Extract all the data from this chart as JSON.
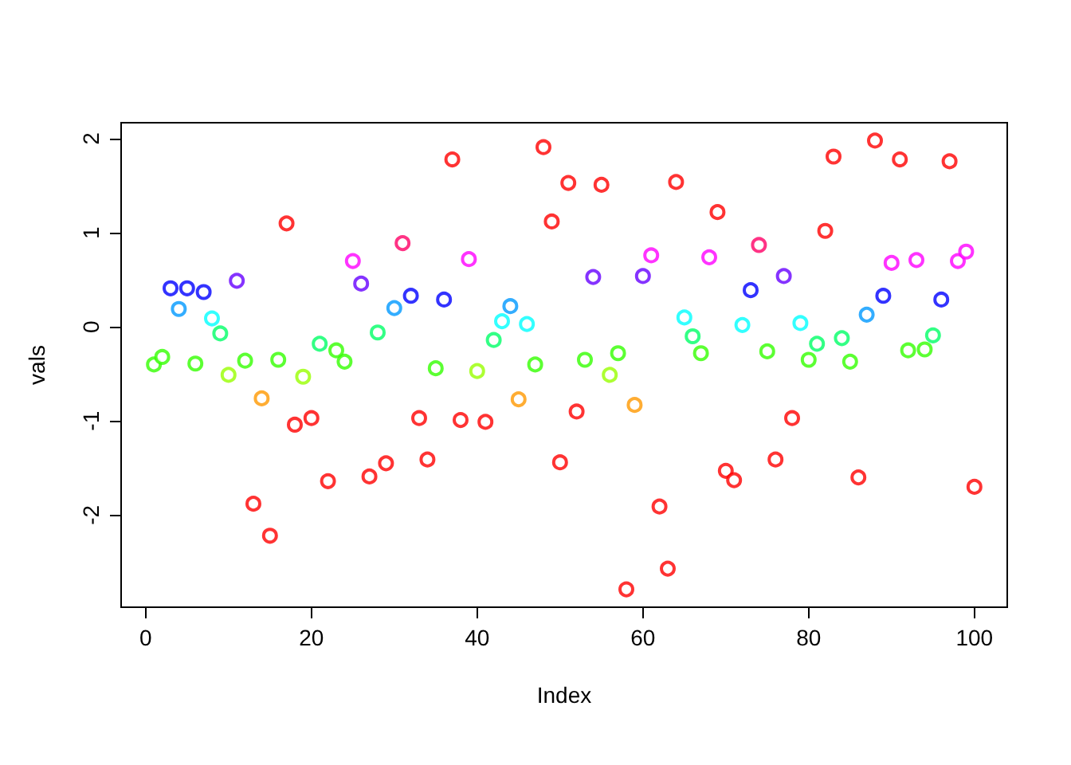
{
  "chart_data": {
    "type": "scatter",
    "xlabel": "Index",
    "ylabel": "vals",
    "marker": "circle",
    "grid": false,
    "xlim": [
      -2.96,
      103.96
    ],
    "ylim": [
      -2.98,
      2.17
    ],
    "xticks": [
      0,
      20,
      40,
      60,
      80,
      100
    ],
    "yticks": [
      -2,
      -1,
      0,
      1,
      2
    ],
    "x": [
      1,
      2,
      3,
      4,
      5,
      6,
      7,
      8,
      9,
      10,
      11,
      12,
      13,
      14,
      15,
      16,
      17,
      18,
      19,
      20,
      21,
      22,
      23,
      24,
      25,
      26,
      27,
      28,
      29,
      30,
      31,
      32,
      33,
      34,
      35,
      36,
      37,
      38,
      39,
      40,
      41,
      42,
      43,
      44,
      45,
      46,
      47,
      48,
      49,
      50,
      51,
      52,
      53,
      54,
      55,
      56,
      57,
      58,
      59,
      60,
      61,
      62,
      63,
      64,
      65,
      66,
      67,
      68,
      69,
      70,
      71,
      72,
      73,
      74,
      75,
      76,
      77,
      78,
      79,
      80,
      81,
      82,
      83,
      84,
      85,
      86,
      87,
      88,
      89,
      90,
      91,
      92,
      93,
      94,
      95,
      96,
      97,
      98,
      99,
      100
    ],
    "values": [
      -0.4,
      -0.32,
      0.41,
      0.19,
      0.41,
      -0.39,
      0.37,
      0.09,
      -0.07,
      -0.51,
      0.49,
      -0.36,
      -1.88,
      -0.76,
      -2.22,
      -0.35,
      1.1,
      -1.04,
      -0.53,
      -0.97,
      -0.18,
      -1.64,
      -0.25,
      -0.37,
      0.7,
      0.46,
      -1.59,
      -0.06,
      -1.45,
      0.2,
      0.89,
      0.33,
      -0.97,
      -1.41,
      -0.44,
      0.29,
      1.78,
      -0.99,
      0.72,
      -0.47,
      -1.01,
      -0.14,
      0.06,
      0.22,
      -0.77,
      0.03,
      -0.4,
      1.91,
      1.12,
      -1.44,
      1.53,
      -0.9,
      -0.35,
      0.53,
      1.51,
      -0.51,
      -0.28,
      -2.79,
      -0.83,
      0.54,
      0.76,
      -1.91,
      -2.57,
      1.54,
      0.1,
      -0.1,
      -0.28,
      0.74,
      1.22,
      -1.53,
      -1.63,
      0.02,
      0.39,
      0.87,
      -0.26,
      -1.41,
      0.54,
      -0.97,
      0.04,
      -0.35,
      -0.18,
      1.02,
      1.81,
      -0.12,
      -0.37,
      -1.6,
      0.13,
      1.98,
      0.33,
      0.68,
      1.78,
      -0.25,
      0.71,
      -0.24,
      -0.09,
      0.29,
      1.76,
      0.7,
      0.8,
      -1.7
    ],
    "colors": [
      "#33ff00",
      "#33ff00",
      "#0000ff",
      "#0099ff",
      "#0000ff",
      "#33ff00",
      "#0000ff",
      "#00ffff",
      "#00ff66",
      "#99ff00",
      "#6600ff",
      "#33ff00",
      "#ff0000",
      "#ff9900",
      "#ff0000",
      "#33ff00",
      "#ff0000",
      "#ff0000",
      "#99ff00",
      "#ff0000",
      "#00ff66",
      "#ff0000",
      "#33ff00",
      "#33ff00",
      "#ff00ff",
      "#6600ff",
      "#ff0000",
      "#00ff66",
      "#ff0000",
      "#0099ff",
      "#ff0066",
      "#0000ff",
      "#ff0000",
      "#ff0000",
      "#33ff00",
      "#0000ff",
      "#ff0000",
      "#ff0000",
      "#ff00ff",
      "#99ff00",
      "#ff0000",
      "#00ff66",
      "#00ffff",
      "#0099ff",
      "#ff9900",
      "#00ffff",
      "#33ff00",
      "#ff0000",
      "#ff0000",
      "#ff0000",
      "#ff0000",
      "#ff0000",
      "#33ff00",
      "#6600ff",
      "#ff0000",
      "#99ff00",
      "#33ff00",
      "#ff0000",
      "#ff9900",
      "#6600ff",
      "#ff00ff",
      "#ff0000",
      "#ff0000",
      "#ff0000",
      "#00ffff",
      "#00ff66",
      "#33ff00",
      "#ff00ff",
      "#ff0000",
      "#ff0000",
      "#ff0000",
      "#00ffff",
      "#0000ff",
      "#ff0066",
      "#33ff00",
      "#ff0000",
      "#6600ff",
      "#ff0000",
      "#00ffff",
      "#33ff00",
      "#00ff66",
      "#ff0000",
      "#ff0000",
      "#00ff66",
      "#33ff00",
      "#ff0000",
      "#0099ff",
      "#ff0000",
      "#0000ff",
      "#ff00ff",
      "#ff0000",
      "#33ff00",
      "#ff00ff",
      "#33ff00",
      "#00ff66",
      "#0000ff",
      "#ff0000",
      "#ff00ff",
      "#ff00ff",
      "#ff0000"
    ]
  }
}
